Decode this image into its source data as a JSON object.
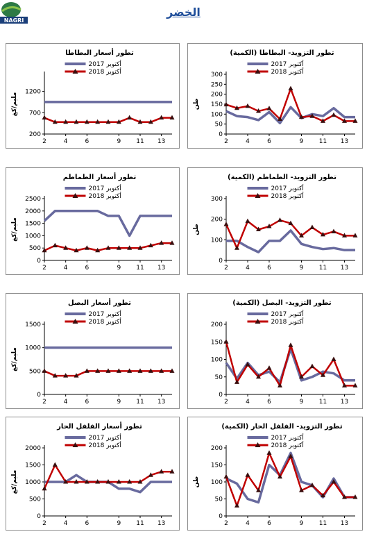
{
  "page": {
    "title": "الخضر",
    "logo_text": "NAGRI"
  },
  "legend_labels": {
    "y2017": "أكتوبر 2017",
    "y2018": "أكتوبر 2018"
  },
  "colors": {
    "y2017": "#686a9e",
    "y2018": "#c00000",
    "marker": "#3a0f0f",
    "title": "#1f4e9a"
  },
  "chart_data": [
    {
      "id": "potato-price",
      "type": "line",
      "title": "تطور أسعار البطاطا",
      "ylabel": "مليم/كغ",
      "ylim": [
        200,
        1600
      ],
      "yticks": [
        200,
        700,
        1200
      ],
      "xticks": [
        "2",
        "4",
        "6",
        "9",
        "11",
        "13"
      ],
      "x": [
        2,
        3,
        4,
        5,
        6,
        7,
        8,
        9,
        10,
        11,
        12,
        13,
        14
      ],
      "series": [
        {
          "name": "أكتوبر 2017",
          "values": [
            950,
            950,
            950,
            950,
            950,
            950,
            950,
            950,
            950,
            950,
            950,
            950,
            950
          ]
        },
        {
          "name": "أكتوبر 2018",
          "values": [
            580,
            480,
            480,
            480,
            480,
            480,
            480,
            480,
            580,
            480,
            480,
            580,
            580
          ]
        }
      ]
    },
    {
      "id": "potato-supply",
      "type": "line",
      "title": "تطور التزويد- البطاطا (الكمية)",
      "ylabel": "طن",
      "ylim": [
        0,
        300
      ],
      "yticks": [
        0,
        50,
        100,
        150,
        200,
        250,
        300
      ],
      "xticks": [
        "2",
        "4",
        "6",
        "9",
        "11",
        "13"
      ],
      "x": [
        2,
        3,
        4,
        5,
        6,
        7,
        8,
        9,
        10,
        11,
        12,
        13,
        14
      ],
      "series": [
        {
          "name": "أكتوبر 2017",
          "values": [
            115,
            90,
            85,
            70,
            110,
            55,
            135,
            80,
            100,
            90,
            130,
            85,
            85
          ]
        },
        {
          "name": "أكتوبر 2018",
          "values": [
            148,
            130,
            140,
            115,
            128,
            75,
            228,
            85,
            90,
            65,
            95,
            65,
            65
          ]
        }
      ]
    },
    {
      "id": "tomato-price",
      "type": "line",
      "title": "تطور أسعار الطماطم",
      "ylabel": "مليم/كغ",
      "ylim": [
        0,
        2500
      ],
      "yticks": [
        0,
        500,
        1000,
        1500,
        2000,
        2500
      ],
      "xticks": [
        "2",
        "4",
        "6",
        "9",
        "11",
        "13"
      ],
      "x": [
        2,
        3,
        4,
        5,
        6,
        7,
        8,
        9,
        10,
        11,
        12,
        13,
        14
      ],
      "series": [
        {
          "name": "أكتوبر 2017",
          "values": [
            1600,
            2000,
            2000,
            2000,
            2000,
            2000,
            1800,
            1800,
            1000,
            1800,
            1800,
            1800,
            1800
          ]
        },
        {
          "name": "أكتوبر 2018",
          "values": [
            400,
            600,
            500,
            400,
            500,
            400,
            500,
            500,
            500,
            500,
            600,
            700,
            700
          ]
        }
      ]
    },
    {
      "id": "tomato-supply",
      "type": "line",
      "title": "تطور التزويد- الطماطم (الكمية)",
      "ylabel": "طن",
      "ylim": [
        0,
        300
      ],
      "yticks": [
        0,
        100,
        200,
        300
      ],
      "xticks": [
        "2",
        "4",
        "6",
        "9",
        "11",
        "13"
      ],
      "x": [
        2,
        3,
        4,
        5,
        6,
        7,
        8,
        9,
        10,
        11,
        12,
        13,
        14
      ],
      "series": [
        {
          "name": "أكتوبر 2017",
          "values": [
            95,
            95,
            65,
            40,
            95,
            95,
            145,
            80,
            65,
            55,
            60,
            50,
            50
          ]
        },
        {
          "name": "أكتوبر 2018",
          "values": [
            175,
            60,
            190,
            150,
            165,
            195,
            180,
            120,
            160,
            125,
            140,
            120,
            120
          ]
        }
      ]
    },
    {
      "id": "onion-price",
      "type": "line",
      "title": "تطور أسعار البصل",
      "ylabel": "مليم/كغ",
      "ylim": [
        0,
        1500
      ],
      "yticks": [
        0,
        500,
        1000,
        1500
      ],
      "xticks": [
        "2",
        "4",
        "6",
        "9",
        "11",
        "13"
      ],
      "x": [
        2,
        3,
        4,
        5,
        6,
        7,
        8,
        9,
        10,
        11,
        12,
        13,
        14
      ],
      "series": [
        {
          "name": "أكتوبر 2017",
          "values": [
            1000,
            1000,
            1000,
            1000,
            1000,
            1000,
            1000,
            1000,
            1000,
            1000,
            1000,
            1000,
            1000
          ]
        },
        {
          "name": "أكتوبر 2018",
          "values": [
            500,
            400,
            400,
            400,
            500,
            500,
            500,
            500,
            500,
            500,
            500,
            500,
            500
          ]
        }
      ]
    },
    {
      "id": "onion-supply",
      "type": "line",
      "title": "تطور التزويد- البصل (الكمية)",
      "ylabel": "",
      "ylim": [
        0,
        200
      ],
      "yticks": [
        0,
        50,
        100,
        150,
        200
      ],
      "xticks": [
        "2",
        "4",
        "6",
        "9",
        "11",
        "13"
      ],
      "x": [
        2,
        3,
        4,
        5,
        6,
        7,
        8,
        9,
        10,
        11,
        12,
        13,
        14
      ],
      "series": [
        {
          "name": "أكتوبر 2017",
          "values": [
            90,
            45,
            90,
            55,
            65,
            35,
            130,
            40,
            50,
            65,
            60,
            40,
            40
          ]
        },
        {
          "name": "أكتوبر 2018",
          "values": [
            150,
            35,
            85,
            50,
            75,
            25,
            140,
            50,
            80,
            55,
            100,
            25,
            25
          ]
        }
      ]
    },
    {
      "id": "chili-price",
      "type": "line",
      "title": "تطور أسعار الفلفل الحار",
      "ylabel": "مليم/كغ",
      "ylim": [
        0,
        2000
      ],
      "yticks": [
        0,
        500,
        1000,
        1500,
        2000
      ],
      "xticks": [
        "2",
        "4",
        "6",
        "9",
        "11",
        "13"
      ],
      "x": [
        2,
        3,
        4,
        5,
        6,
        7,
        8,
        9,
        10,
        11,
        12,
        13,
        14
      ],
      "series": [
        {
          "name": "أكتوبر 2017",
          "values": [
            1000,
            1000,
            1000,
            1200,
            1000,
            1000,
            1000,
            800,
            800,
            700,
            1000,
            1000,
            1000
          ]
        },
        {
          "name": "أكتوبر 2018",
          "values": [
            800,
            1500,
            1000,
            1000,
            1000,
            1000,
            1000,
            1000,
            1000,
            1000,
            1200,
            1300,
            1300
          ]
        }
      ]
    },
    {
      "id": "chili-supply",
      "type": "line",
      "title": "تطور التزويد- الفلفل الحار (الكمية)",
      "ylabel": "طن",
      "ylim": [
        0,
        200
      ],
      "yticks": [
        0,
        50,
        100,
        150,
        200
      ],
      "xticks": [
        "2",
        "4",
        "6",
        "9",
        "11",
        "13"
      ],
      "x": [
        2,
        3,
        4,
        5,
        6,
        7,
        8,
        9,
        10,
        11,
        12,
        13,
        14
      ],
      "series": [
        {
          "name": "أكتوبر 2017",
          "values": [
            110,
            95,
            50,
            40,
            150,
            120,
            185,
            100,
            90,
            55,
            110,
            55,
            55
          ]
        },
        {
          "name": "أكتوبر 2018",
          "values": [
            115,
            30,
            120,
            75,
            185,
            115,
            175,
            75,
            90,
            60,
            100,
            55,
            55
          ]
        }
      ]
    }
  ]
}
